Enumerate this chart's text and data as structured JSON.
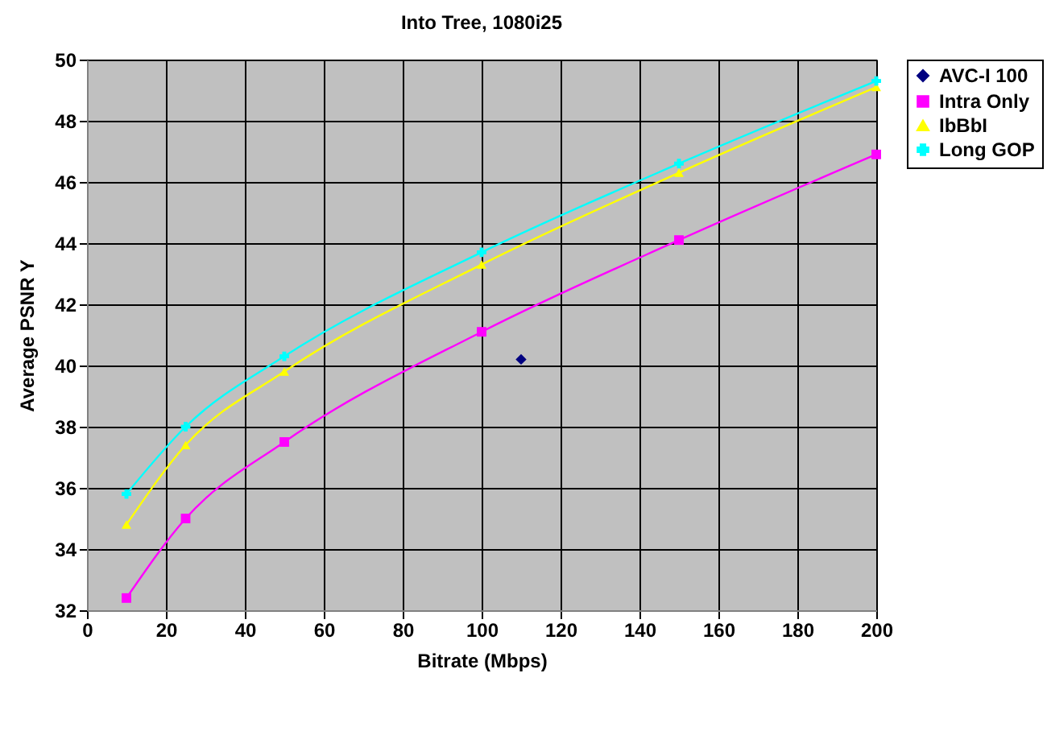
{
  "chart_data": {
    "type": "line",
    "title": "Into Tree, 1080i25",
    "xlabel": "Bitrate (Mbps)",
    "ylabel": "Average PSNR Y",
    "xlim": [
      0,
      200
    ],
    "xticks": [
      0,
      20,
      40,
      60,
      80,
      100,
      120,
      140,
      160,
      180,
      200
    ],
    "ylim": [
      32,
      50
    ],
    "yticks": [
      32,
      34,
      36,
      38,
      40,
      42,
      44,
      46,
      48,
      50
    ],
    "grid": true,
    "legend": "right",
    "series": [
      {
        "name": "AVC-I 100",
        "type": "scatter",
        "color": "#000080",
        "marker": "diamond",
        "x": [
          110
        ],
        "values": [
          40.2
        ]
      },
      {
        "name": "Intra Only",
        "type": "line",
        "color": "#ff00ff",
        "marker": "square",
        "x": [
          10,
          25,
          50,
          100,
          150,
          200
        ],
        "values": [
          32.4,
          35.0,
          37.5,
          41.1,
          44.1,
          46.9
        ]
      },
      {
        "name": "IbBbI",
        "type": "line",
        "color": "#ffff00",
        "marker": "triangle",
        "x": [
          10,
          25,
          50,
          100,
          150,
          200
        ],
        "values": [
          34.8,
          37.4,
          39.8,
          43.3,
          46.3,
          49.1
        ]
      },
      {
        "name": "Long GOP",
        "type": "line",
        "color": "#00ffff",
        "marker": "cross",
        "x": [
          10,
          25,
          50,
          100,
          150,
          200
        ],
        "values": [
          35.8,
          38.0,
          40.3,
          43.7,
          46.6,
          49.3
        ]
      }
    ]
  }
}
